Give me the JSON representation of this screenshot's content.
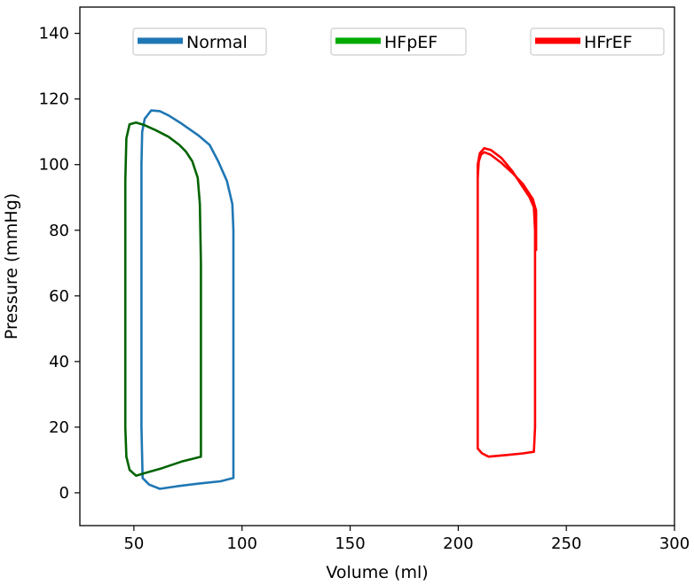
{
  "chart_data": {
    "type": "line",
    "title": "",
    "xlabel": "Volume (ml)",
    "ylabel": "Pressure (mmHg)",
    "xlim": [
      25,
      300
    ],
    "ylim": [
      -10,
      148
    ],
    "x_ticks": [
      50,
      100,
      150,
      200,
      250,
      300
    ],
    "y_ticks": [
      0,
      20,
      40,
      60,
      80,
      100,
      120,
      140
    ],
    "grid": false,
    "legend": "top, three separate boxes",
    "series": [
      {
        "name": "Normal",
        "color": "#1f77b4",
        "loops": [
          [
            [
              96,
              4.5
            ],
            [
              90,
              3.5
            ],
            [
              80,
              2.8
            ],
            [
              70,
              2
            ],
            [
              62,
              1.2
            ],
            [
              57,
              2.5
            ],
            [
              54,
              4.5
            ],
            [
              53.5,
              20
            ],
            [
              53.5,
              50
            ],
            [
              53.5,
              80
            ],
            [
              53.5,
              100
            ],
            [
              53.8,
              110
            ],
            [
              55,
              114
            ],
            [
              58,
              116.5
            ],
            [
              62,
              116.3
            ],
            [
              66,
              115
            ],
            [
              72,
              112.5
            ],
            [
              80,
              108.8
            ],
            [
              85,
              106
            ],
            [
              89,
              101
            ],
            [
              93,
              95
            ],
            [
              95.5,
              88
            ],
            [
              96,
              80
            ],
            [
              96,
              40
            ],
            [
              96,
              10
            ],
            [
              96,
              4.5
            ]
          ]
        ]
      },
      {
        "name": "HFpEF",
        "color": "#006400",
        "legend_color": "#00aa00",
        "loops": [
          [
            [
              81,
              11
            ],
            [
              78,
              10.5
            ],
            [
              72,
              9.5
            ],
            [
              63,
              7.5
            ],
            [
              55,
              6
            ],
            [
              51,
              5.2
            ],
            [
              48,
              7
            ],
            [
              46.5,
              11
            ],
            [
              46,
              20
            ],
            [
              46,
              60
            ],
            [
              46,
              95
            ],
            [
              46.5,
              108
            ],
            [
              48,
              112.3
            ],
            [
              51,
              112.8
            ],
            [
              55,
              112
            ],
            [
              60,
              110.5
            ],
            [
              66,
              108.5
            ],
            [
              71,
              106
            ],
            [
              74,
              104
            ],
            [
              77,
              101
            ],
            [
              79.5,
              96
            ],
            [
              80.5,
              88
            ],
            [
              81,
              70
            ],
            [
              81,
              30
            ],
            [
              81,
              11
            ]
          ]
        ]
      },
      {
        "name": "HFrEF",
        "color": "#ff0000",
        "loops": [
          [
            [
              235,
              12.5
            ],
            [
              230,
              12
            ],
            [
              222,
              11.5
            ],
            [
              214,
              11
            ],
            [
              211,
              12
            ],
            [
              209,
              13.5
            ],
            [
              209,
              30
            ],
            [
              209,
              60
            ],
            [
              209,
              90
            ],
            [
              209,
              100
            ],
            [
              210,
              103.5
            ],
            [
              212,
              105
            ],
            [
              215,
              104.5
            ],
            [
              220,
              102
            ],
            [
              225,
              98
            ],
            [
              229,
              94
            ],
            [
              233,
              90
            ],
            [
              235,
              87
            ],
            [
              235.5,
              80
            ],
            [
              235.5,
              50
            ],
            [
              235.5,
              20
            ],
            [
              235,
              12.5
            ]
          ],
          [
            [
              236,
              74
            ],
            [
              236,
              86
            ],
            [
              234.5,
              89.5
            ],
            [
              230,
              94
            ],
            [
              225,
              97.5
            ],
            [
              220,
              100.5
            ],
            [
              215,
              103
            ],
            [
              212,
              103.8
            ],
            [
              210.5,
              103
            ],
            [
              209.5,
              101
            ],
            [
              209,
              96
            ]
          ]
        ]
      }
    ]
  }
}
